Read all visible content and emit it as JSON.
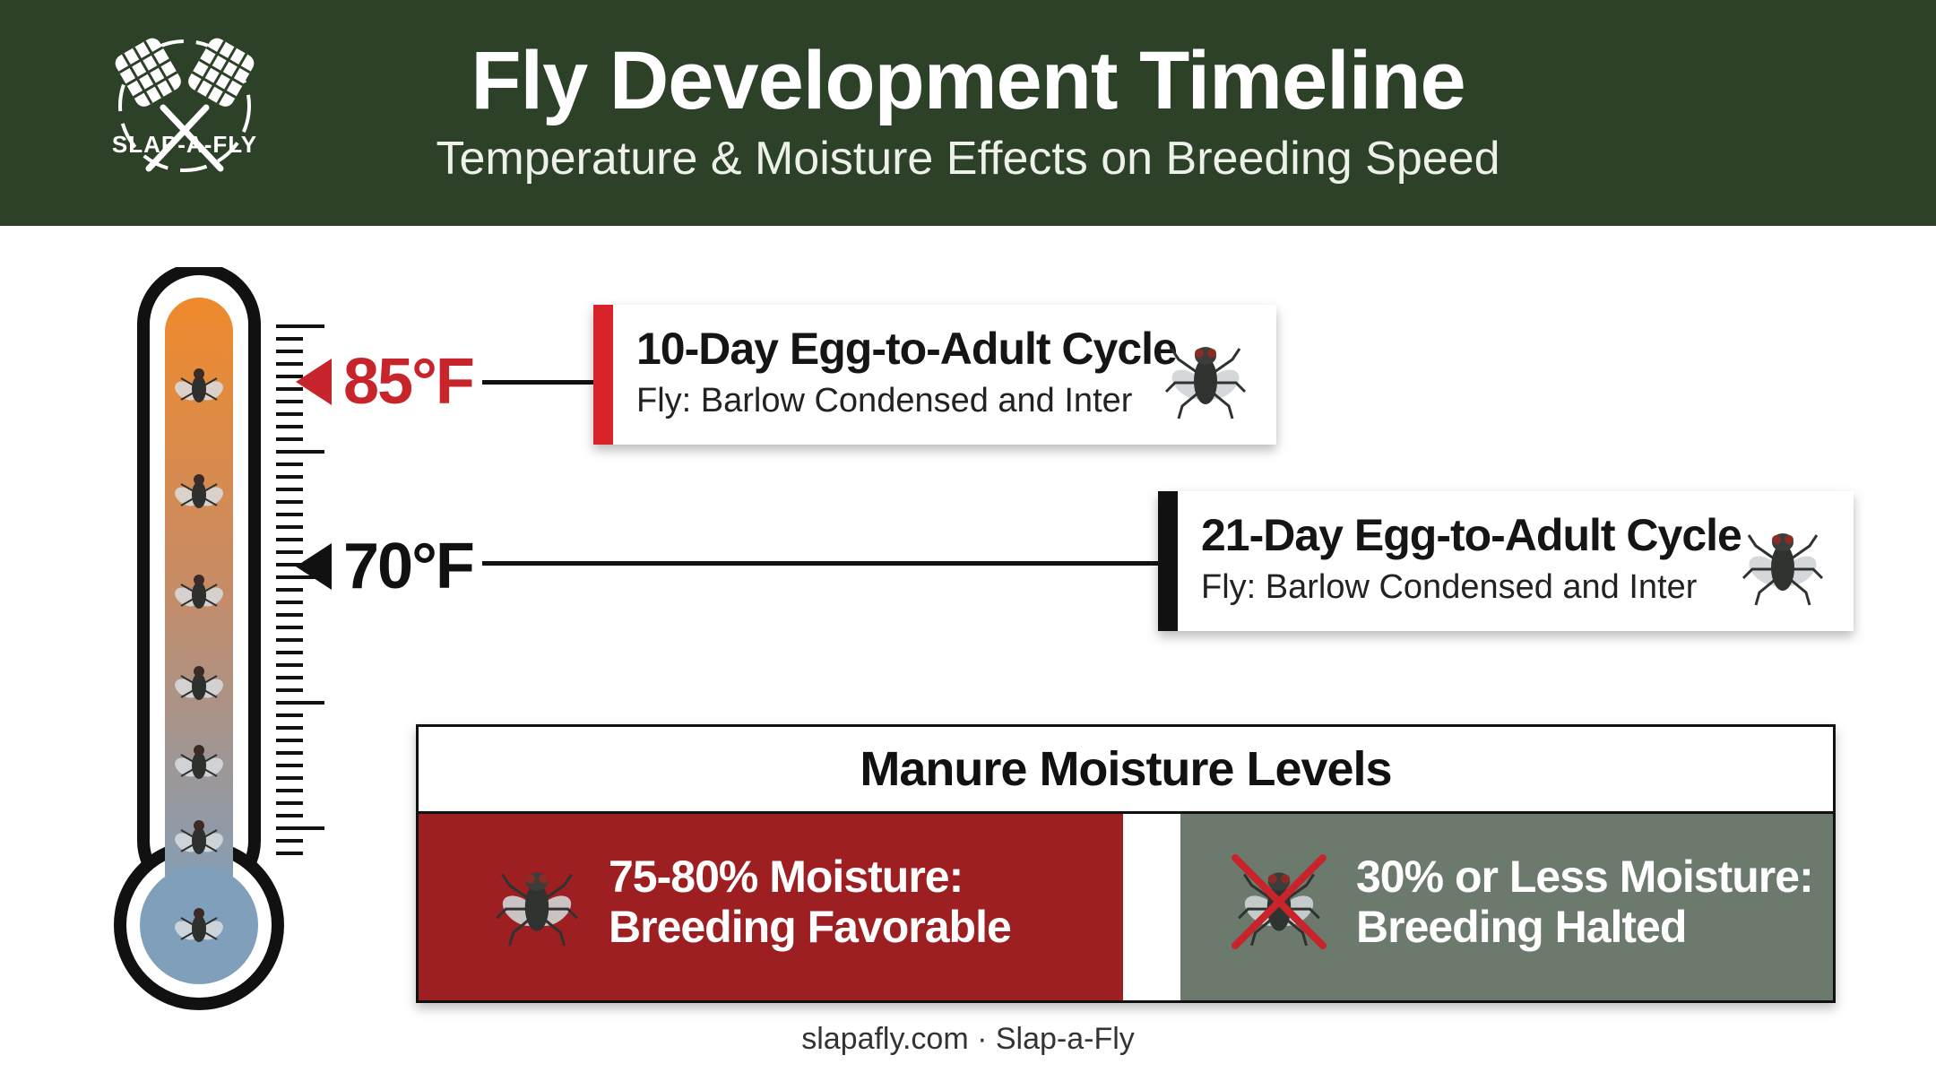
{
  "header": {
    "title": "Fly Development Timeline",
    "subtitle": "Temperature & Moisture Effects on Breeding Speed",
    "background_color": "#2d4128",
    "logo_text": "SLAP-A-FLY"
  },
  "thermometer": {
    "gradient_top_color": "#ef8a2c",
    "gradient_bottom_color": "#7f9fbb",
    "markers": [
      {
        "label": "85°F",
        "color": "#c8242b"
      },
      {
        "label": "70°F",
        "color": "#111111"
      }
    ]
  },
  "cycles": [
    {
      "title": "10-Day Egg-to-Adult Cycle",
      "subtitle": "Fly: Barlow Condensed and Inter",
      "accent": "#d8232a",
      "icon": "housefly-icon"
    },
    {
      "title": "21-Day Egg-to-Adult Cycle",
      "subtitle": "Fly: Barlow Condensed and Inter",
      "accent": "#111111",
      "icon": "housefly-icon"
    }
  ],
  "moisture": {
    "title": "Manure Moisture Levels",
    "levels": [
      {
        "line1": "75-80% Moisture:",
        "line2": "Breeding Favorable",
        "color": "#9e1f22",
        "icon": "housefly-icon"
      },
      {
        "line1": "30% or Less Moisture:",
        "line2": "Breeding Halted",
        "color": "#6b7a6c",
        "icon": "crossed-out-fly-icon"
      }
    ]
  },
  "footer": "slapafly.com · Slap-a-Fly"
}
